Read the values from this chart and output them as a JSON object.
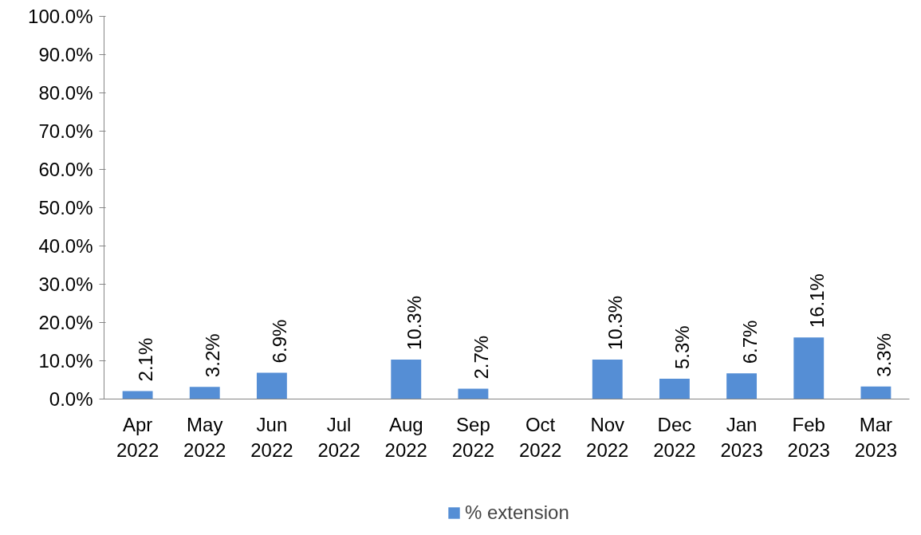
{
  "chart_data": {
    "type": "bar",
    "categories": [
      "Apr 2022",
      "May 2022",
      "Jun 2022",
      "Jul 2022",
      "Aug 2022",
      "Sep 2022",
      "Oct 2022",
      "Nov 2022",
      "Dec 2022",
      "Jan 2023",
      "Feb 2023",
      "Mar 2023"
    ],
    "series": [
      {
        "name": "% extension",
        "color": "#558ed5",
        "values": [
          2.1,
          3.2,
          6.9,
          null,
          10.3,
          2.7,
          null,
          10.3,
          5.3,
          6.7,
          16.1,
          3.3
        ],
        "value_labels": [
          "2.1%",
          "3.2%",
          "6.9%",
          null,
          "10.3%",
          "2.7%",
          null,
          "10.3%",
          "5.3%",
          "6.7%",
          "16.1%",
          "3.3%"
        ]
      }
    ],
    "ylim": [
      0,
      100
    ],
    "yticks": [
      {
        "value": 0,
        "label": "0.0%"
      },
      {
        "value": 10,
        "label": "10.0%"
      },
      {
        "value": 20,
        "label": "20.0%"
      },
      {
        "value": 30,
        "label": "30.0%"
      },
      {
        "value": 40,
        "label": "40.0%"
      },
      {
        "value": 50,
        "label": "50.0%"
      },
      {
        "value": 60,
        "label": "60.0%"
      },
      {
        "value": 70,
        "label": "70.0%"
      },
      {
        "value": 80,
        "label": "80.0%"
      },
      {
        "value": 90,
        "label": "90.0%"
      },
      {
        "value": 100,
        "label": "100.0%"
      }
    ],
    "grid": false,
    "legend": "bottom"
  }
}
